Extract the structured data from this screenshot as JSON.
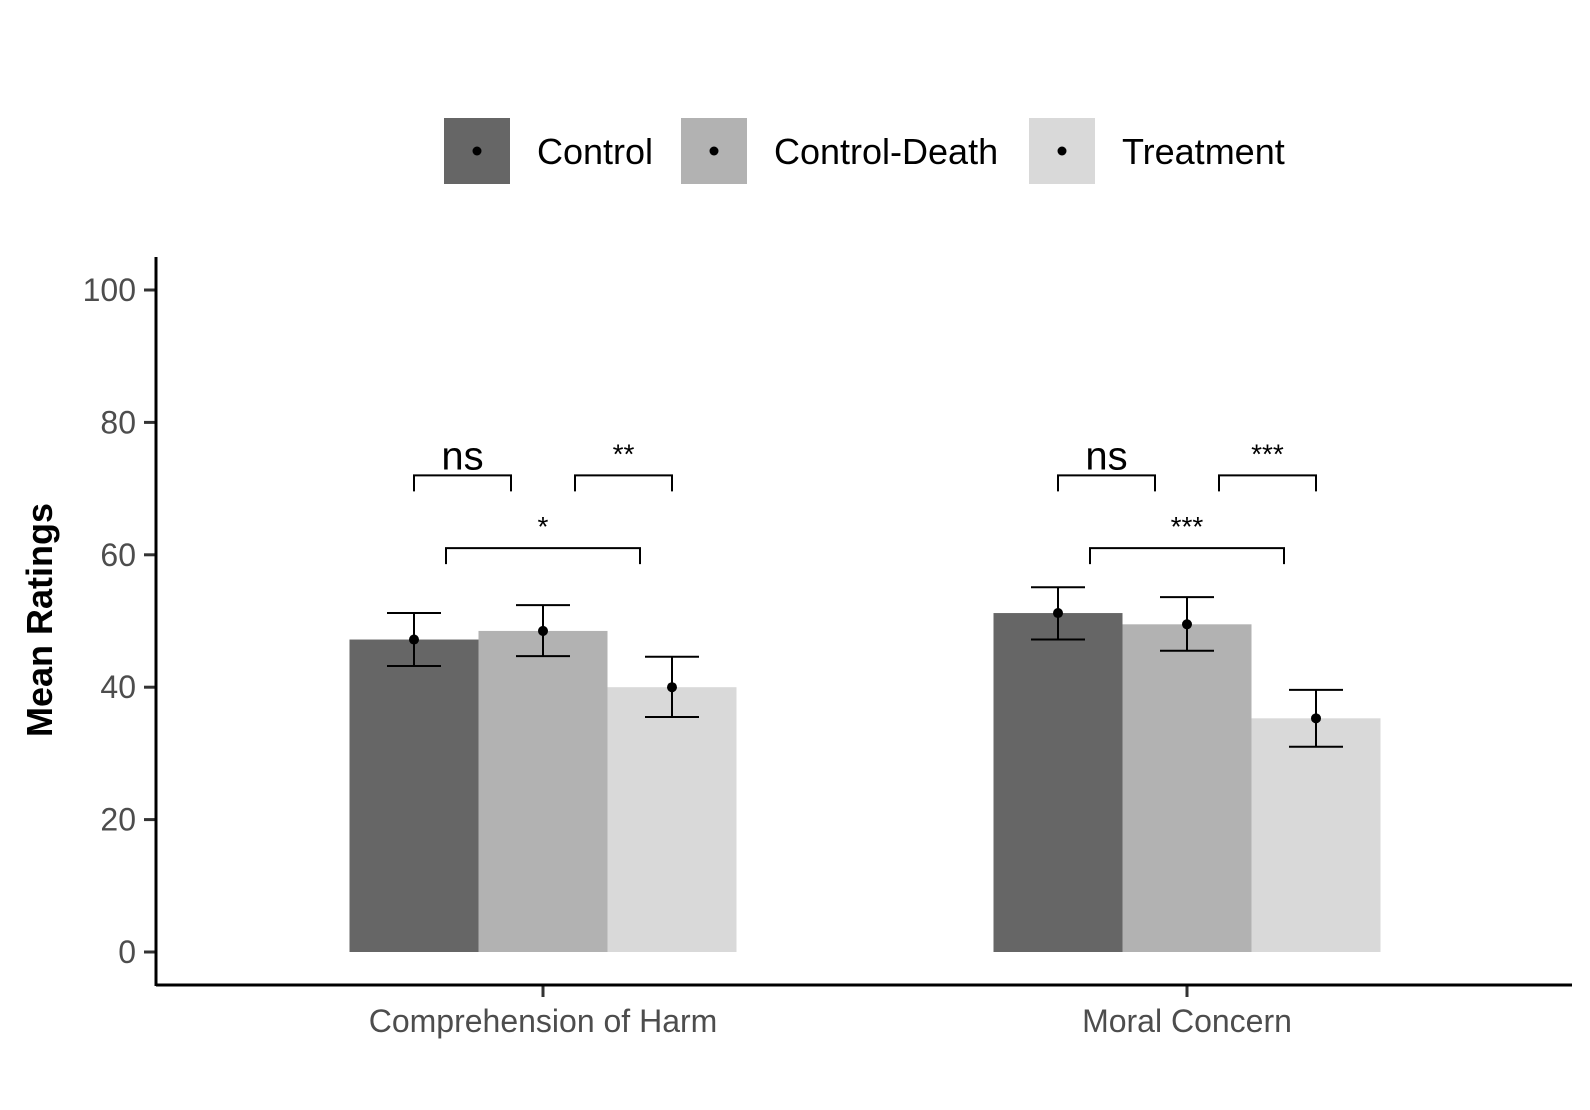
{
  "chart_data": {
    "type": "bar",
    "categories": [
      "Comprehension of Harm",
      "Moral Concern"
    ],
    "series": [
      {
        "name": "Control",
        "values": [
          47.2,
          51.2
        ],
        "ci_low": [
          43.2,
          47.2
        ],
        "ci_high": [
          51.2,
          55.1
        ],
        "color": "#666666"
      },
      {
        "name": "Control-Death",
        "values": [
          48.5,
          49.5
        ],
        "ci_low": [
          44.7,
          45.5
        ],
        "ci_high": [
          52.4,
          53.6
        ],
        "color": "#b2b2b2"
      },
      {
        "name": "Treatment",
        "values": [
          40.0,
          35.3
        ],
        "ci_low": [
          35.5,
          31.0
        ],
        "ci_high": [
          44.6,
          39.6
        ],
        "color": "#d9d9d9"
      }
    ],
    "xlabel": "",
    "ylabel": "Mean Ratings",
    "ylim": [
      -5,
      105
    ],
    "yticks": [
      0,
      20,
      40,
      60,
      80,
      100
    ],
    "grid": false,
    "legend_position": "top",
    "error_bars": true,
    "significance": [
      {
        "category": 0,
        "from": 0,
        "to": 1,
        "label": "ns",
        "y": 72
      },
      {
        "category": 0,
        "from": 1,
        "to": 2,
        "label": "**",
        "y": 72
      },
      {
        "category": 0,
        "from": 0,
        "to": 2,
        "label": "*",
        "y": 61
      },
      {
        "category": 1,
        "from": 0,
        "to": 1,
        "label": "ns",
        "y": 72
      },
      {
        "category": 1,
        "from": 1,
        "to": 2,
        "label": "***",
        "y": 72
      },
      {
        "category": 1,
        "from": 0,
        "to": 2,
        "label": "***",
        "y": 61
      }
    ]
  }
}
